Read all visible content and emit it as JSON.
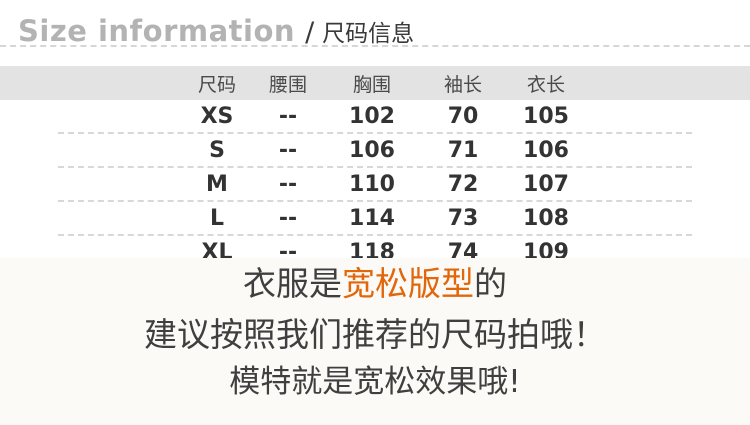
{
  "colors": {
    "title_en": "#b3b3b3",
    "title_zh": "#3a3a3a",
    "header_row_bg": "#e3e3e3",
    "header_row_text": "#4a4a4a",
    "table_text": "#333333",
    "dashed_line": "#d8d8d8",
    "highlight_orange": "#e2670b",
    "note_text": "#3f3f3f",
    "bottom_bg": "#fbfaf7"
  },
  "header": {
    "title_en": "Size information",
    "separator": "/",
    "title_zh": "尺码信息"
  },
  "size_table": {
    "columns": [
      "尺码",
      "腰围",
      "胸围",
      "袖长",
      "衣长"
    ],
    "rows": [
      [
        "XS",
        "--",
        "102",
        "70",
        "105"
      ],
      [
        "S",
        "--",
        "106",
        "71",
        "106"
      ],
      [
        "M",
        "--",
        "110",
        "72",
        "107"
      ],
      [
        "L",
        "--",
        "114",
        "73",
        "108"
      ],
      [
        "XL",
        "--",
        "118",
        "74",
        "109"
      ]
    ]
  },
  "notes": {
    "line1_prefix": "衣服是",
    "line1_highlight": "宽松版型",
    "line1_suffix": "的",
    "line2": "建议按照我们推荐的尺码拍哦！",
    "line3": "模特就是宽松效果哦!"
  }
}
